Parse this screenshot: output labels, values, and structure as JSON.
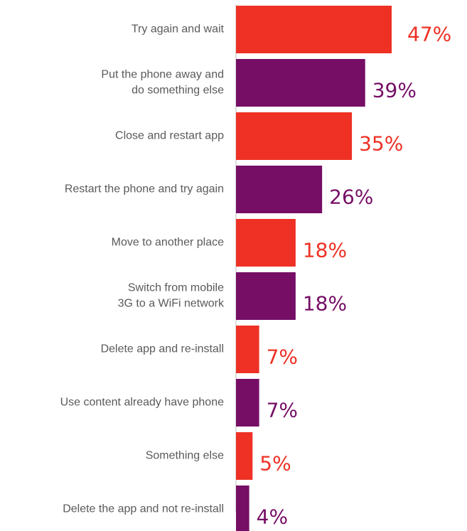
{
  "chart_data": {
    "type": "bar",
    "orientation": "horizontal",
    "categories": [
      [
        "Try again and wait"
      ],
      [
        "Put the phone away and",
        "do something else"
      ],
      [
        "Close and restart app"
      ],
      [
        "Restart the phone and try again"
      ],
      [
        "Move to another place"
      ],
      [
        "Switch from mobile",
        "3G to a WiFi network"
      ],
      [
        "Delete app and re-install"
      ],
      [
        "Use content already have phone"
      ],
      [
        "Something else"
      ],
      [
        "Delete the app and not re-install"
      ]
    ],
    "values": [
      47,
      39,
      35,
      26,
      18,
      18,
      7,
      7,
      5,
      4
    ],
    "value_labels": [
      "47%",
      "39%",
      "35%",
      "26%",
      "18%",
      "18%",
      "7%",
      "7%",
      "5%",
      "4%"
    ],
    "xlim": [
      0,
      47
    ],
    "grid": false,
    "legend": "none",
    "colors": {
      "odd": "#ee3124",
      "even": "#760e66"
    }
  }
}
